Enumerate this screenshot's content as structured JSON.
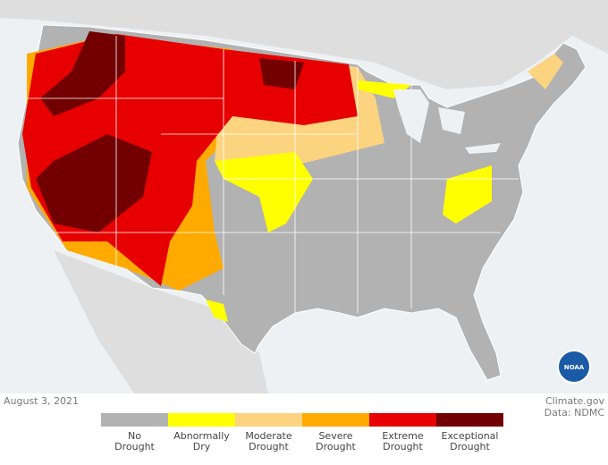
{
  "map": {
    "date": "August 3, 2021",
    "credit": "Climate.gov",
    "source": "Data: NDMC",
    "logo": "NOAA",
    "legend": [
      {
        "label": "No Drought",
        "color": "#b2b2b2"
      },
      {
        "label": "Abnormally Dry",
        "color": "#ffff00"
      },
      {
        "label": "Moderate Drought",
        "color": "#fcd37f"
      },
      {
        "label": "Severe Drought",
        "color": "#ffaa00"
      },
      {
        "label": "Extreme Drought",
        "color": "#e60000"
      },
      {
        "label": "Exceptional Drought",
        "color": "#730000"
      }
    ]
  }
}
